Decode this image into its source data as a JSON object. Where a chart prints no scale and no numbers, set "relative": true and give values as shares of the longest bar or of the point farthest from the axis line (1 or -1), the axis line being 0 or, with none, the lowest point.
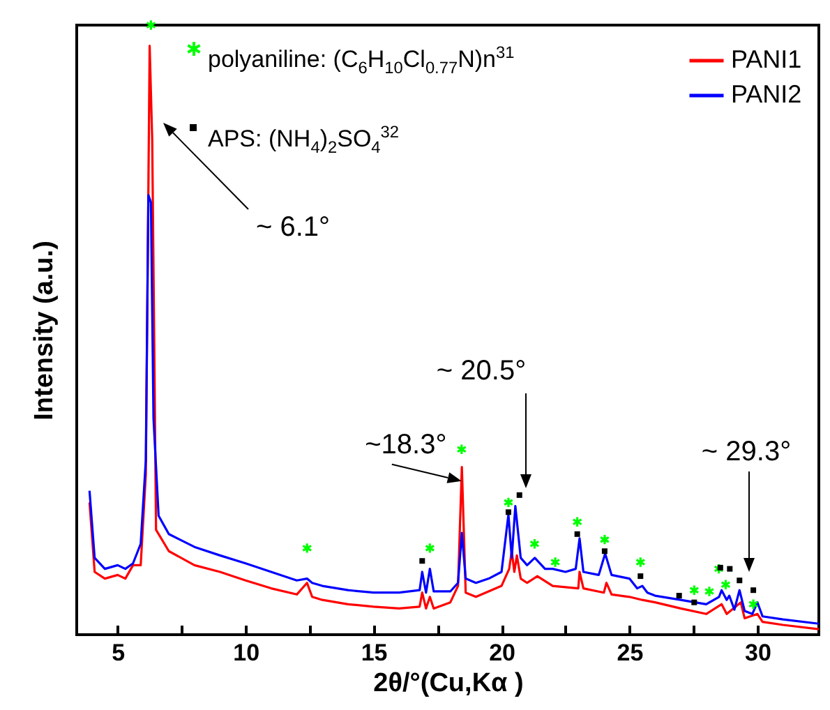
{
  "chart_data": {
    "type": "line",
    "relative": true,
    "xlabel": "2θ/°(Cu,Kα )",
    "ylabel": "Intensity (a.u.)",
    "xlim": [
      3.4,
      32.4
    ],
    "xticks": [
      5,
      {
        "value": 7.5,
        "label": null
      },
      10,
      {
        "value": 12.5,
        "label": null
      },
      15,
      {
        "value": 17.5,
        "label": null
      },
      20,
      {
        "value": 22.5,
        "label": null
      },
      25,
      {
        "value": 27.5,
        "label": null
      },
      30
    ],
    "legend": "top right",
    "series": [
      {
        "name": "PANI1",
        "color": "#ff0000",
        "x": [
          3.9,
          4.1,
          4.5,
          5.0,
          5.3,
          5.6,
          5.9,
          6.1,
          6.25,
          6.35,
          6.5,
          7,
          8,
          9,
          10,
          11,
          12,
          12.4,
          12.6,
          13,
          14,
          15,
          16,
          16.8,
          16.9,
          17.05,
          17.2,
          17.35,
          18,
          18.3,
          18.45,
          18.6,
          19,
          20,
          20.3,
          20.4,
          20.5,
          20.6,
          20.75,
          21,
          21.4,
          22,
          23,
          23.05,
          23.2,
          24,
          24.1,
          24.3,
          25,
          25.5,
          26,
          27,
          28,
          28.6,
          28.8,
          29.35,
          29.5,
          30,
          30.2,
          31,
          32.4
        ],
        "values": [
          0.217,
          0.103,
          0.092,
          0.098,
          0.092,
          0.114,
          0.114,
          0.263,
          0.966,
          0.812,
          0.172,
          0.137,
          0.114,
          0.103,
          0.089,
          0.076,
          0.066,
          0.085,
          0.062,
          0.057,
          0.05,
          0.046,
          0.043,
          0.046,
          0.069,
          0.043,
          0.062,
          0.043,
          0.053,
          0.08,
          0.275,
          0.069,
          0.062,
          0.08,
          0.108,
          0.137,
          0.103,
          0.13,
          0.092,
          0.085,
          0.096,
          0.08,
          0.076,
          0.103,
          0.076,
          0.069,
          0.085,
          0.066,
          0.062,
          0.057,
          0.053,
          0.043,
          0.034,
          0.05,
          0.034,
          0.053,
          0.027,
          0.034,
          0.021,
          0.016,
          0.009
        ]
      },
      {
        "name": "PANI2",
        "color": "#0000ff",
        "x": [
          3.9,
          4.1,
          4.5,
          5.0,
          5.3,
          5.6,
          5.9,
          6.1,
          6.2,
          6.3,
          6.4,
          6.6,
          7,
          8,
          9,
          10,
          11,
          12,
          12.4,
          12.6,
          13,
          14,
          15,
          16,
          16.8,
          16.9,
          17.05,
          17.2,
          17.35,
          18,
          18.3,
          18.45,
          18.6,
          19,
          19.5,
          20,
          20.27,
          20.4,
          20.54,
          20.75,
          21,
          21.3,
          21.7,
          22,
          22.5,
          22.9,
          23.05,
          23.2,
          23.8,
          24.05,
          24.3,
          25,
          25.3,
          25.5,
          25.7,
          26,
          27,
          28,
          28.5,
          28.6,
          28.8,
          28.9,
          29.1,
          29.3,
          29.5,
          29.8,
          30.0,
          30.2,
          31,
          32.4
        ],
        "values": [
          0.236,
          0.126,
          0.108,
          0.114,
          0.108,
          0.117,
          0.149,
          0.286,
          0.721,
          0.709,
          0.355,
          0.195,
          0.165,
          0.144,
          0.13,
          0.117,
          0.103,
          0.089,
          0.092,
          0.085,
          0.08,
          0.073,
          0.069,
          0.069,
          0.073,
          0.103,
          0.069,
          0.108,
          0.071,
          0.071,
          0.085,
          0.167,
          0.092,
          0.085,
          0.092,
          0.103,
          0.197,
          0.126,
          0.211,
          0.126,
          0.114,
          0.126,
          0.108,
          0.108,
          0.103,
          0.108,
          0.158,
          0.103,
          0.098,
          0.133,
          0.098,
          0.092,
          0.076,
          0.08,
          0.069,
          0.064,
          0.057,
          0.05,
          0.062,
          0.073,
          0.057,
          0.064,
          0.041,
          0.073,
          0.039,
          0.034,
          0.053,
          0.03,
          0.025,
          0.018
        ]
      },
      {
        "name": "polyaniline: (C$_{6}$H$_{10}$Cl$_{0.77}$N)n$^{31}$",
        "type": "scatter",
        "marker": "cross",
        "color": "#00ff00",
        "x": [
          6.3,
          12.4,
          17.2,
          18.44,
          20.27,
          21.29,
          22.1,
          22.96,
          24.03,
          25.43,
          27.53,
          28.12,
          28.49,
          28.76,
          29.84
        ],
        "values": [
          1.0,
          0.142,
          0.142,
          0.304,
          0.217,
          0.149,
          0.119,
          0.185,
          0.156,
          0.119,
          0.073,
          0.071,
          0.108,
          0.082,
          0.05
        ]
      },
      {
        "name": "APS: (NH$_{4}$)$_{2}$SO$_{4}$$^{32}$",
        "type": "scatter",
        "marker": "square",
        "color": "#000000",
        "x": [
          16.9,
          20.27,
          20.7,
          22.96,
          24.03,
          25.43,
          26.94,
          27.53,
          28.55,
          28.92,
          29.3,
          29.84
        ],
        "values": [
          0.121,
          0.201,
          0.229,
          0.165,
          0.137,
          0.096,
          0.064,
          0.053,
          0.11,
          0.108,
          0.089,
          0.073
        ]
      }
    ],
    "annotations": [
      "~ 6.1°",
      {
        "text": "~18.3°",
        "x": 18.44,
        "y": 0.252
      },
      "~ 20.5°",
      "~ 29.3°"
    ]
  }
}
